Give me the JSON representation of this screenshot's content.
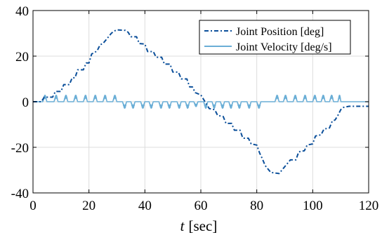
{
  "chart_data": {
    "type": "line",
    "xlabel": "t [sec]",
    "xlabel_var": "t",
    "xlabel_unit": "[sec]",
    "ylabel": "",
    "xlim": [
      0,
      120
    ],
    "ylim": [
      -40,
      40
    ],
    "xticks": [
      0,
      20,
      40,
      60,
      80,
      100,
      120
    ],
    "yticks": [
      -40,
      -20,
      0,
      20,
      40
    ],
    "grid": true,
    "legend_position": "top-right",
    "series": [
      {
        "name": "Joint Position [deg]",
        "style": "dash-dot",
        "color": "#0b4f9a",
        "points": [
          [
            0,
            0
          ],
          [
            3,
            0
          ],
          [
            4,
            2
          ],
          [
            7,
            2
          ],
          [
            8,
            4.5
          ],
          [
            10,
            4.5
          ],
          [
            11,
            7.5
          ],
          [
            13,
            7.5
          ],
          [
            14,
            10.5
          ],
          [
            15,
            10.5
          ],
          [
            16,
            14
          ],
          [
            18,
            14
          ],
          [
            19,
            17
          ],
          [
            20,
            17
          ],
          [
            21,
            21
          ],
          [
            22,
            21.5
          ],
          [
            23,
            22.5
          ],
          [
            24,
            25
          ],
          [
            25,
            25.5
          ],
          [
            26,
            27
          ],
          [
            27,
            28.5
          ],
          [
            28,
            30
          ],
          [
            29,
            31
          ],
          [
            30,
            31.5
          ],
          [
            33,
            31.3
          ],
          [
            34,
            30.5
          ],
          [
            35,
            28.5
          ],
          [
            37,
            28.5
          ],
          [
            38,
            25.5
          ],
          [
            40,
            25.3
          ],
          [
            41,
            22
          ],
          [
            43,
            22
          ],
          [
            44,
            19.5
          ],
          [
            46,
            19.5
          ],
          [
            47,
            16.5
          ],
          [
            49,
            16.5
          ],
          [
            50,
            13
          ],
          [
            52,
            13
          ],
          [
            53,
            10
          ],
          [
            55,
            10
          ],
          [
            56,
            6.5
          ],
          [
            57,
            6.5
          ],
          [
            58,
            4
          ],
          [
            60,
            3
          ],
          [
            61,
            1
          ],
          [
            62,
            -1
          ],
          [
            63,
            -3
          ],
          [
            65,
            -3.5
          ],
          [
            66,
            -6
          ],
          [
            68,
            -6.5
          ],
          [
            69,
            -9.5
          ],
          [
            71,
            -9.5
          ],
          [
            72,
            -12.5
          ],
          [
            74,
            -12.5
          ],
          [
            75,
            -16
          ],
          [
            77,
            -16
          ],
          [
            78,
            -18.5
          ],
          [
            80,
            -19
          ],
          [
            81,
            -22.5
          ],
          [
            82,
            -25
          ],
          [
            83,
            -28
          ],
          [
            84,
            -29.5
          ],
          [
            85,
            -31
          ],
          [
            88,
            -31.5
          ],
          [
            89,
            -30
          ],
          [
            90,
            -28.5
          ],
          [
            91,
            -27
          ],
          [
            92,
            -25.5
          ],
          [
            94,
            -25.5
          ],
          [
            95,
            -22
          ],
          [
            97,
            -21.5
          ],
          [
            98,
            -19
          ],
          [
            100,
            -18.5
          ],
          [
            101,
            -15
          ],
          [
            103,
            -14.5
          ],
          [
            104,
            -12
          ],
          [
            106,
            -11.5
          ],
          [
            107,
            -8.5
          ],
          [
            108,
            -8
          ],
          [
            109,
            -6
          ],
          [
            110,
            -3.5
          ],
          [
            111,
            -2.5
          ],
          [
            113,
            -2
          ],
          [
            120,
            -2
          ]
        ]
      },
      {
        "name": "Joint Velocity [deg/s]",
        "style": "solid",
        "color": "#6aaed6",
        "bursts": [
          {
            "start": 3.5,
            "end": 5.5,
            "amp": 4,
            "sign": 1
          },
          {
            "start": 7.5,
            "end": 9.5,
            "amp": 4,
            "sign": 1
          },
          {
            "start": 11,
            "end": 13,
            "amp": 4,
            "sign": 1
          },
          {
            "start": 14.5,
            "end": 16.5,
            "amp": 4,
            "sign": 1
          },
          {
            "start": 18,
            "end": 20,
            "amp": 4,
            "sign": 1
          },
          {
            "start": 21.5,
            "end": 23.5,
            "amp": 4,
            "sign": 1
          },
          {
            "start": 25,
            "end": 27,
            "amp": 4,
            "sign": 1
          },
          {
            "start": 28.5,
            "end": 30.5,
            "amp": 4,
            "sign": 1
          },
          {
            "start": 32,
            "end": 34,
            "amp": 4,
            "sign": -1
          },
          {
            "start": 35,
            "end": 37,
            "amp": 4,
            "sign": -1
          },
          {
            "start": 38.5,
            "end": 40.5,
            "amp": 4,
            "sign": -1
          },
          {
            "start": 41.5,
            "end": 43.5,
            "amp": 4,
            "sign": -1
          },
          {
            "start": 45,
            "end": 47,
            "amp": 4,
            "sign": -1
          },
          {
            "start": 48,
            "end": 50,
            "amp": 4,
            "sign": -1
          },
          {
            "start": 51.5,
            "end": 53.5,
            "amp": 4,
            "sign": -1
          },
          {
            "start": 54.5,
            "end": 56.5,
            "amp": 4,
            "sign": -1
          },
          {
            "start": 57.5,
            "end": 59.5,
            "amp": 3,
            "sign": -1
          },
          {
            "start": 61,
            "end": 63,
            "amp": 4,
            "sign": -1
          },
          {
            "start": 64,
            "end": 66,
            "amp": 4,
            "sign": -1
          },
          {
            "start": 67,
            "end": 69,
            "amp": 4,
            "sign": -1
          },
          {
            "start": 70,
            "end": 72,
            "amp": 4,
            "sign": -1
          },
          {
            "start": 73,
            "end": 75,
            "amp": 4,
            "sign": -1
          },
          {
            "start": 76.5,
            "end": 78.5,
            "amp": 4,
            "sign": -1
          },
          {
            "start": 80,
            "end": 82,
            "amp": 4,
            "sign": -1
          },
          {
            "start": 86.5,
            "end": 88.5,
            "amp": 4,
            "sign": 1
          },
          {
            "start": 89.5,
            "end": 91.5,
            "amp": 4,
            "sign": 1
          },
          {
            "start": 93,
            "end": 95,
            "amp": 4,
            "sign": 1
          },
          {
            "start": 96.5,
            "end": 98.5,
            "amp": 4,
            "sign": 1
          },
          {
            "start": 100,
            "end": 102,
            "amp": 4,
            "sign": 1
          },
          {
            "start": 103,
            "end": 105,
            "amp": 4,
            "sign": 1
          },
          {
            "start": 106,
            "end": 108,
            "amp": 4,
            "sign": 1
          },
          {
            "start": 109,
            "end": 110.5,
            "amp": 4,
            "sign": 1
          }
        ]
      }
    ]
  }
}
